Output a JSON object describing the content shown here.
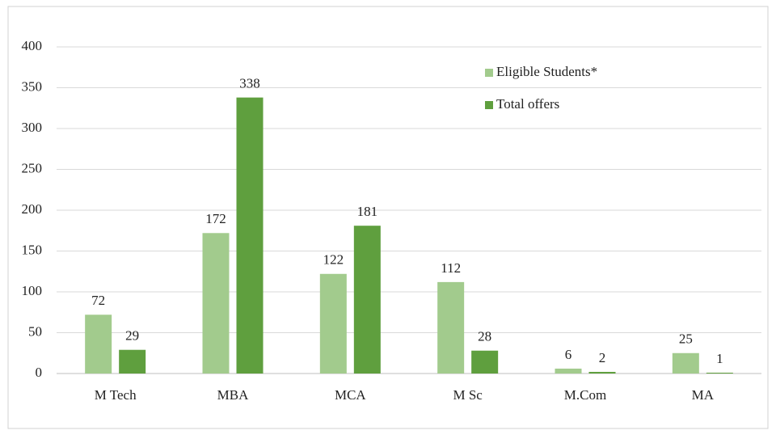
{
  "chart_data": {
    "type": "bar",
    "categories": [
      "M Tech",
      "MBA",
      "MCA",
      "M Sc",
      "M.Com",
      "MA"
    ],
    "series": [
      {
        "name": "Eligible Students*",
        "color": "#a2cb8d",
        "values": [
          72,
          172,
          122,
          112,
          6,
          25
        ]
      },
      {
        "name": "Total offers",
        "color": "#5f9f3e",
        "values": [
          29,
          338,
          181,
          28,
          2,
          1
        ]
      }
    ],
    "ylim": [
      0,
      400
    ],
    "yticks": [
      0,
      50,
      100,
      150,
      200,
      250,
      300,
      350,
      400
    ],
    "grid": true,
    "legend": "top-right"
  }
}
